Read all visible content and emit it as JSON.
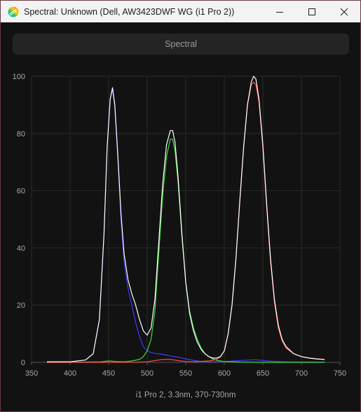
{
  "window": {
    "title": "Spectral: Unknown (Dell, AW3423DWF WG (i1 Pro 2))",
    "icon": "app-spectrum-icon"
  },
  "tab": {
    "label": "Spectral"
  },
  "colors": {
    "white": "#ffffff",
    "red": "#ff4a4a",
    "green": "#3ddc3d",
    "blue": "#3c3cff"
  },
  "chart_data": {
    "type": "line",
    "xlabel": "i1 Pro 2, 3.3nm, 370-730nm",
    "ylabel": "",
    "xlim": [
      350,
      750
    ],
    "ylim": [
      0,
      100
    ],
    "x_ticks": [
      350,
      400,
      450,
      500,
      550,
      600,
      650,
      700,
      750
    ],
    "y_ticks": [
      0,
      20,
      40,
      60,
      80,
      100
    ],
    "grid": true,
    "legend": "none",
    "series": [
      {
        "color": "#ffffff",
        "x": [
          370,
          400,
          420,
          430,
          438,
          444,
          448,
          452,
          455,
          458,
          462,
          466,
          470,
          475,
          480,
          485,
          490,
          495,
          500,
          505,
          510,
          515,
          520,
          525,
          530,
          533,
          536,
          540,
          545,
          550,
          555,
          560,
          565,
          570,
          575,
          580,
          585,
          590,
          595,
          600,
          605,
          610,
          615,
          620,
          625,
          630,
          635,
          638,
          641,
          645,
          650,
          655,
          660,
          665,
          670,
          675,
          680,
          690,
          700,
          710,
          720,
          730
        ],
        "y": [
          0.2,
          0.2,
          0.8,
          3,
          15,
          45,
          75,
          92,
          96,
          90,
          72,
          52,
          38,
          29,
          24,
          20,
          15,
          11,
          9.5,
          12,
          22,
          42,
          62,
          76,
          81,
          81,
          77,
          65,
          45,
          28,
          17,
          11,
          7,
          4.5,
          3,
          2,
          1.5,
          1.5,
          2,
          4,
          10,
          20,
          36,
          56,
          75,
          90,
          98,
          100,
          99,
          92,
          76,
          55,
          36,
          22,
          13,
          8,
          5.5,
          3,
          2,
          1.5,
          1.2,
          1
        ]
      },
      {
        "color": "#3c3cff",
        "x": [
          370,
          400,
          420,
          430,
          438,
          444,
          448,
          452,
          455,
          458,
          462,
          466,
          470,
          475,
          480,
          485,
          490,
          495,
          500,
          505,
          510,
          520,
          530,
          540,
          550,
          560,
          570,
          580,
          600,
          620,
          640,
          660,
          680,
          700,
          730
        ],
        "y": [
          0.2,
          0.2,
          0.8,
          3,
          15,
          45,
          75,
          92,
          95.5,
          89,
          71,
          50,
          35,
          26,
          20,
          14,
          9,
          5.5,
          4,
          3.4,
          3.1,
          2.8,
          2.2,
          1.8,
          1.2,
          0.7,
          0.3,
          0.2,
          0.3,
          0.6,
          0.9,
          0.4,
          0.2,
          0.1,
          0.1
        ]
      },
      {
        "color": "#3ddc3d",
        "x": [
          370,
          420,
          440,
          450,
          460,
          470,
          480,
          490,
          495,
          500,
          505,
          510,
          515,
          520,
          525,
          530,
          533,
          536,
          540,
          545,
          550,
          555,
          560,
          565,
          570,
          575,
          580,
          585,
          590,
          600,
          620,
          650,
          700,
          730
        ],
        "y": [
          0,
          0.1,
          0.2,
          0.5,
          0.3,
          0.2,
          0.5,
          1,
          2,
          4,
          8,
          18,
          38,
          58,
          72,
          78,
          78,
          74,
          63,
          44,
          28,
          18,
          12,
          8,
          5,
          3,
          2,
          1.2,
          0.7,
          0.3,
          0.1,
          0,
          0,
          0
        ]
      },
      {
        "color": "#ff4a4a",
        "x": [
          370,
          480,
          500,
          510,
          520,
          530,
          540,
          550,
          560,
          580,
          590,
          595,
          600,
          605,
          610,
          615,
          620,
          625,
          630,
          635,
          638,
          641,
          645,
          650,
          655,
          660,
          665,
          670,
          675,
          680,
          690,
          700,
          710,
          720,
          730
        ],
        "y": [
          0,
          0,
          0.2,
          0.6,
          1,
          1,
          0.6,
          0.3,
          0.2,
          0.5,
          1,
          2,
          4,
          10,
          20,
          36,
          56,
          75,
          90,
          97,
          98,
          97,
          91,
          75,
          54,
          35,
          21,
          12,
          7.5,
          5,
          3,
          2,
          1.5,
          1.2,
          1
        ]
      }
    ]
  }
}
